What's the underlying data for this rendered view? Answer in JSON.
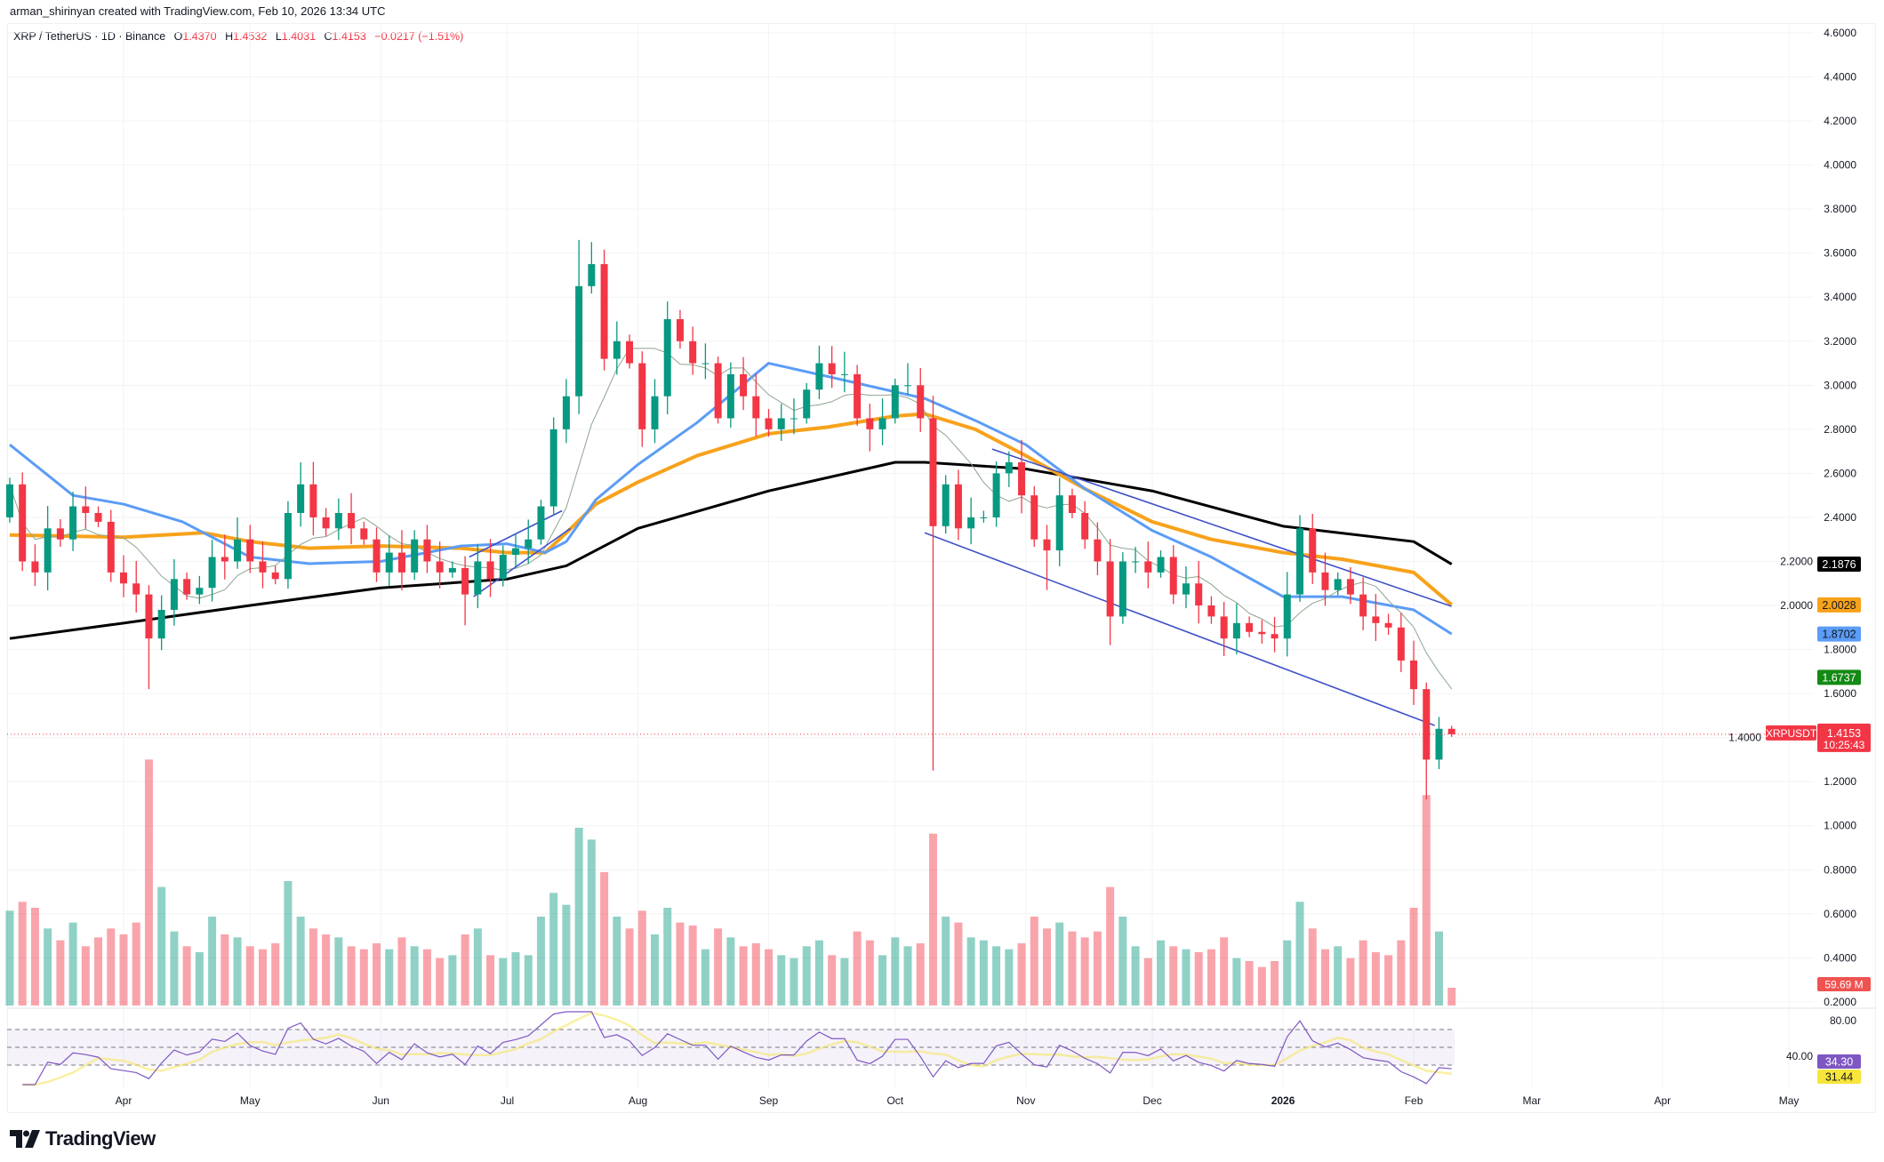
{
  "credit": "arman_shirinyan created with TradingView.com, Feb 10, 2026 13:34 UTC",
  "legend": {
    "symbol": "XRP / TetherUS · 1D · Binance",
    "o_label": "O",
    "o": "1.4370",
    "h_label": "H",
    "h": "1.4532",
    "l_label": "L",
    "l": "1.4031",
    "c_label": "C",
    "c": "1.4153",
    "change": "−0.0217 (−1.51%)"
  },
  "brand": "TradingView",
  "colors": {
    "up": "#089981",
    "down": "#f23645",
    "ma200": "#000000",
    "ma100": "#f7a21b",
    "ma50": "#5b9cf6",
    "ma20": "#8fa58f",
    "channel": "#3f51c8",
    "rsi": "#7e57c2",
    "rsi_ma": "#f5e663"
  },
  "chart_data": {
    "type": "candlestick",
    "symbol_tag": "XRPUSDT",
    "last_price": "1.4153",
    "countdown": "10:25:43",
    "ylim": [
      0.2,
      4.6
    ],
    "yticks": [
      "4.6000",
      "4.4000",
      "4.2000",
      "4.0000",
      "3.8000",
      "3.6000",
      "3.4000",
      "3.2000",
      "3.0000",
      "2.8000",
      "2.6000",
      "2.4000",
      "2.2000",
      "2.0000",
      "1.8000",
      "1.6000",
      "1.4000",
      "1.2000",
      "1.0000",
      "0.8000",
      "0.6000",
      "0.4000",
      "0.2000"
    ],
    "xticks": [
      {
        "label": "Apr",
        "date": "2025-04-01"
      },
      {
        "label": "May",
        "date": "2025-05-01"
      },
      {
        "label": "Jun",
        "date": "2025-06-01"
      },
      {
        "label": "Jul",
        "date": "2025-07-01"
      },
      {
        "label": "Aug",
        "date": "2025-08-01"
      },
      {
        "label": "Sep",
        "date": "2025-09-01"
      },
      {
        "label": "Oct",
        "date": "2025-10-01"
      },
      {
        "label": "Nov",
        "date": "2025-11-01"
      },
      {
        "label": "Dec",
        "date": "2025-12-01"
      },
      {
        "label": "2026",
        "date": "2026-01-01",
        "bold": true
      },
      {
        "label": "Feb",
        "date": "2026-02-01"
      },
      {
        "label": "Mar",
        "date": "2026-03-01"
      },
      {
        "label": "Apr",
        "date": "2026-04-01"
      },
      {
        "label": "May",
        "date": "2026-05-01"
      }
    ],
    "first_open": 2.4,
    "candles_columns": [
      "date",
      "close",
      "volume_M",
      "low",
      "high"
    ],
    "candles": [
      [
        "2025-03-05",
        2.55,
        320
      ],
      [
        "2025-03-08",
        2.2,
        350
      ],
      [
        "2025-03-11",
        2.15,
        330
      ],
      [
        "2025-03-14",
        2.35,
        260
      ],
      [
        "2025-03-17",
        2.3,
        220
      ],
      [
        "2025-03-20",
        2.45,
        280
      ],
      [
        "2025-03-23",
        2.42,
        200
      ],
      [
        "2025-03-26",
        2.38,
        230
      ],
      [
        "2025-03-29",
        2.15,
        260
      ],
      [
        "2025-04-01",
        2.1,
        240
      ],
      [
        "2025-04-04",
        2.05,
        280
      ],
      [
        "2025-04-07",
        1.85,
        830,
        1.62
      ],
      [
        "2025-04-10",
        1.98,
        400
      ],
      [
        "2025-04-13",
        2.12,
        250
      ],
      [
        "2025-04-16",
        2.05,
        200
      ],
      [
        "2025-04-19",
        2.08,
        180
      ],
      [
        "2025-04-22",
        2.22,
        300
      ],
      [
        "2025-04-25",
        2.2,
        240
      ],
      [
        "2025-04-28",
        2.3,
        230,
        null,
        2.4
      ],
      [
        "2025-05-01",
        2.2,
        200
      ],
      [
        "2025-05-04",
        2.15,
        190
      ],
      [
        "2025-05-07",
        2.12,
        210
      ],
      [
        "2025-05-10",
        2.42,
        420
      ],
      [
        "2025-05-13",
        2.55,
        300,
        null,
        2.65
      ],
      [
        "2025-05-16",
        2.4,
        260
      ],
      [
        "2025-05-19",
        2.35,
        240
      ],
      [
        "2025-05-22",
        2.42,
        230
      ],
      [
        "2025-05-25",
        2.35,
        200
      ],
      [
        "2025-05-28",
        2.3,
        190
      ],
      [
        "2025-05-31",
        2.15,
        210
      ],
      [
        "2025-06-03",
        2.24,
        190
      ],
      [
        "2025-06-06",
        2.15,
        230
      ],
      [
        "2025-06-09",
        2.3,
        200
      ],
      [
        "2025-06-12",
        2.2,
        190
      ],
      [
        "2025-06-15",
        2.15,
        160
      ],
      [
        "2025-06-18",
        2.17,
        170
      ],
      [
        "2025-06-21",
        2.05,
        240,
        1.91
      ],
      [
        "2025-06-24",
        2.2,
        260
      ],
      [
        "2025-06-27",
        2.12,
        170
      ],
      [
        "2025-06-30",
        2.23,
        160
      ],
      [
        "2025-07-03",
        2.26,
        180
      ],
      [
        "2025-07-06",
        2.3,
        170
      ],
      [
        "2025-07-09",
        2.45,
        300
      ],
      [
        "2025-07-12",
        2.8,
        380
      ],
      [
        "2025-07-15",
        2.95,
        340
      ],
      [
        "2025-07-18",
        3.45,
        600,
        null,
        3.66
      ],
      [
        "2025-07-21",
        3.55,
        560,
        null,
        3.65
      ],
      [
        "2025-07-24",
        3.12,
        450
      ],
      [
        "2025-07-27",
        3.2,
        300
      ],
      [
        "2025-07-30",
        3.1,
        260
      ],
      [
        "2025-08-02",
        2.8,
        320,
        2.72
      ],
      [
        "2025-08-05",
        2.95,
        240
      ],
      [
        "2025-08-08",
        3.3,
        330,
        null,
        3.38
      ],
      [
        "2025-08-11",
        3.2,
        280
      ],
      [
        "2025-08-14",
        3.1,
        270
      ],
      [
        "2025-08-17",
        3.1,
        190
      ],
      [
        "2025-08-20",
        2.85,
        260
      ],
      [
        "2025-08-23",
        3.05,
        230
      ],
      [
        "2025-08-26",
        2.95,
        200
      ],
      [
        "2025-08-29",
        2.85,
        210
      ],
      [
        "2025-09-01",
        2.8,
        190
      ],
      [
        "2025-09-04",
        2.85,
        170
      ],
      [
        "2025-09-07",
        2.85,
        160
      ],
      [
        "2025-09-10",
        2.98,
        200
      ],
      [
        "2025-09-13",
        3.1,
        220,
        null,
        3.18
      ],
      [
        "2025-09-16",
        3.05,
        170
      ],
      [
        "2025-09-19",
        3.05,
        160
      ],
      [
        "2025-09-22",
        2.85,
        250
      ],
      [
        "2025-09-25",
        2.8,
        220,
        2.7
      ],
      [
        "2025-09-28",
        2.85,
        170
      ],
      [
        "2025-10-01",
        3.0,
        230
      ],
      [
        "2025-10-04",
        3.0,
        200,
        null,
        3.1
      ],
      [
        "2025-10-07",
        2.85,
        210
      ],
      [
        "2025-10-10",
        2.36,
        580,
        1.25
      ],
      [
        "2025-10-13",
        2.55,
        300
      ],
      [
        "2025-10-16",
        2.35,
        280
      ],
      [
        "2025-10-19",
        2.4,
        230
      ],
      [
        "2025-10-22",
        2.4,
        220
      ],
      [
        "2025-10-25",
        2.6,
        200
      ],
      [
        "2025-10-28",
        2.65,
        190,
        null,
        2.7
      ],
      [
        "2025-10-31",
        2.5,
        210
      ],
      [
        "2025-11-03",
        2.3,
        300
      ],
      [
        "2025-11-06",
        2.25,
        260,
        2.07
      ],
      [
        "2025-11-09",
        2.5,
        280,
        null,
        2.58
      ],
      [
        "2025-11-12",
        2.42,
        250
      ],
      [
        "2025-11-15",
        2.3,
        230
      ],
      [
        "2025-11-18",
        2.2,
        250
      ],
      [
        "2025-11-21",
        1.95,
        400,
        1.82
      ],
      [
        "2025-11-24",
        2.2,
        300
      ],
      [
        "2025-11-27",
        2.2,
        200
      ],
      [
        "2025-11-30",
        2.15,
        160
      ],
      [
        "2025-12-03",
        2.22,
        220
      ],
      [
        "2025-12-06",
        2.05,
        200
      ],
      [
        "2025-12-09",
        2.1,
        190
      ],
      [
        "2025-12-12",
        2.0,
        180
      ],
      [
        "2025-12-15",
        1.95,
        190
      ],
      [
        "2025-12-18",
        1.85,
        230,
        1.77
      ],
      [
        "2025-12-21",
        1.92,
        160
      ],
      [
        "2025-12-24",
        1.88,
        150
      ],
      [
        "2025-12-27",
        1.87,
        130
      ],
      [
        "2025-12-30",
        1.85,
        150
      ],
      [
        "2026-01-02",
        2.05,
        220
      ],
      [
        "2026-01-05",
        2.35,
        350,
        null,
        2.41
      ],
      [
        "2026-01-08",
        2.15,
        260
      ],
      [
        "2026-01-11",
        2.07,
        190
      ],
      [
        "2026-01-14",
        2.12,
        200
      ],
      [
        "2026-01-17",
        2.05,
        160
      ],
      [
        "2026-01-20",
        1.95,
        220
      ],
      [
        "2026-01-23",
        1.92,
        180
      ],
      [
        "2026-01-26",
        1.9,
        170
      ],
      [
        "2026-01-29",
        1.75,
        220
      ],
      [
        "2026-02-01",
        1.62,
        330
      ],
      [
        "2026-02-04",
        1.3,
        710,
        1.12
      ],
      [
        "2026-02-07",
        1.44,
        250
      ],
      [
        "2026-02-10",
        1.4153,
        60,
        1.4031,
        1.4532
      ]
    ],
    "moving_averages": [
      {
        "key": "ma200",
        "label": "2.1876",
        "points": [
          [
            "2025-03-05",
            1.85
          ],
          [
            "2025-04-01",
            1.92
          ],
          [
            "2025-05-01",
            2.0
          ],
          [
            "2025-06-01",
            2.08
          ],
          [
            "2025-07-01",
            2.12
          ],
          [
            "2025-07-15",
            2.18
          ],
          [
            "2025-08-01",
            2.35
          ],
          [
            "2025-09-01",
            2.52
          ],
          [
            "2025-10-01",
            2.65
          ],
          [
            "2025-10-08",
            2.65
          ],
          [
            "2025-11-01",
            2.62
          ],
          [
            "2025-12-01",
            2.52
          ],
          [
            "2026-01-01",
            2.36
          ],
          [
            "2026-02-01",
            2.29
          ],
          [
            "2026-02-10",
            2.1876
          ]
        ]
      },
      {
        "key": "ma100",
        "label": "2.0028",
        "points": [
          [
            "2025-03-05",
            2.32
          ],
          [
            "2025-04-01",
            2.31
          ],
          [
            "2025-04-20",
            2.33
          ],
          [
            "2025-05-01",
            2.29
          ],
          [
            "2025-05-15",
            2.26
          ],
          [
            "2025-06-01",
            2.27
          ],
          [
            "2025-06-20",
            2.26
          ],
          [
            "2025-07-01",
            2.24
          ],
          [
            "2025-07-10",
            2.24
          ],
          [
            "2025-07-15",
            2.33
          ],
          [
            "2025-07-22",
            2.46
          ],
          [
            "2025-08-01",
            2.56
          ],
          [
            "2025-08-15",
            2.68
          ],
          [
            "2025-09-01",
            2.78
          ],
          [
            "2025-09-15",
            2.81
          ],
          [
            "2025-10-01",
            2.86
          ],
          [
            "2025-10-08",
            2.87
          ],
          [
            "2025-10-20",
            2.8
          ],
          [
            "2025-11-01",
            2.68
          ],
          [
            "2025-11-15",
            2.53
          ],
          [
            "2025-12-01",
            2.38
          ],
          [
            "2025-12-15",
            2.3
          ],
          [
            "2026-01-01",
            2.24
          ],
          [
            "2026-01-15",
            2.21
          ],
          [
            "2026-02-01",
            2.15
          ],
          [
            "2026-02-10",
            2.0028
          ]
        ]
      },
      {
        "key": "ma50",
        "label": "1.8702",
        "points": [
          [
            "2025-03-05",
            2.73
          ],
          [
            "2025-03-20",
            2.5
          ],
          [
            "2025-04-01",
            2.46
          ],
          [
            "2025-04-15",
            2.38
          ],
          [
            "2025-05-01",
            2.22
          ],
          [
            "2025-05-15",
            2.19
          ],
          [
            "2025-06-01",
            2.2
          ],
          [
            "2025-06-20",
            2.27
          ],
          [
            "2025-07-01",
            2.28
          ],
          [
            "2025-07-10",
            2.24
          ],
          [
            "2025-07-15",
            2.29
          ],
          [
            "2025-07-22",
            2.48
          ],
          [
            "2025-08-01",
            2.64
          ],
          [
            "2025-08-15",
            2.83
          ],
          [
            "2025-09-01",
            3.1
          ],
          [
            "2025-09-15",
            3.04
          ],
          [
            "2025-10-01",
            2.97
          ],
          [
            "2025-10-08",
            2.94
          ],
          [
            "2025-10-20",
            2.84
          ],
          [
            "2025-11-01",
            2.73
          ],
          [
            "2025-11-15",
            2.53
          ],
          [
            "2025-12-01",
            2.34
          ],
          [
            "2025-12-15",
            2.22
          ],
          [
            "2026-01-01",
            2.04
          ],
          [
            "2026-01-15",
            2.04
          ],
          [
            "2026-02-01",
            1.98
          ],
          [
            "2026-02-10",
            1.8702
          ]
        ]
      },
      {
        "key": "ma20",
        "label": "1.6737"
      }
    ],
    "trendlines": [
      {
        "from": [
          "2025-06-23",
          2.04
        ],
        "to": [
          "2025-07-16",
          2.35
        ]
      },
      {
        "from": [
          "2025-06-22",
          2.22
        ],
        "to": [
          "2025-07-14",
          2.43
        ]
      },
      {
        "from": [
          "2025-10-08",
          2.33
        ],
        "to": [
          "2026-02-06",
          1.455
        ]
      },
      {
        "from": [
          "2025-10-24",
          2.71
        ],
        "to": [
          "2026-02-10",
          1.996
        ]
      }
    ],
    "volume_label": "59.69 M",
    "rsi": {
      "levels": [
        70,
        50,
        30
      ],
      "ticks": [
        "80.00",
        "40.00"
      ],
      "value_label": "34.30",
      "ma_label": "31.44"
    }
  }
}
